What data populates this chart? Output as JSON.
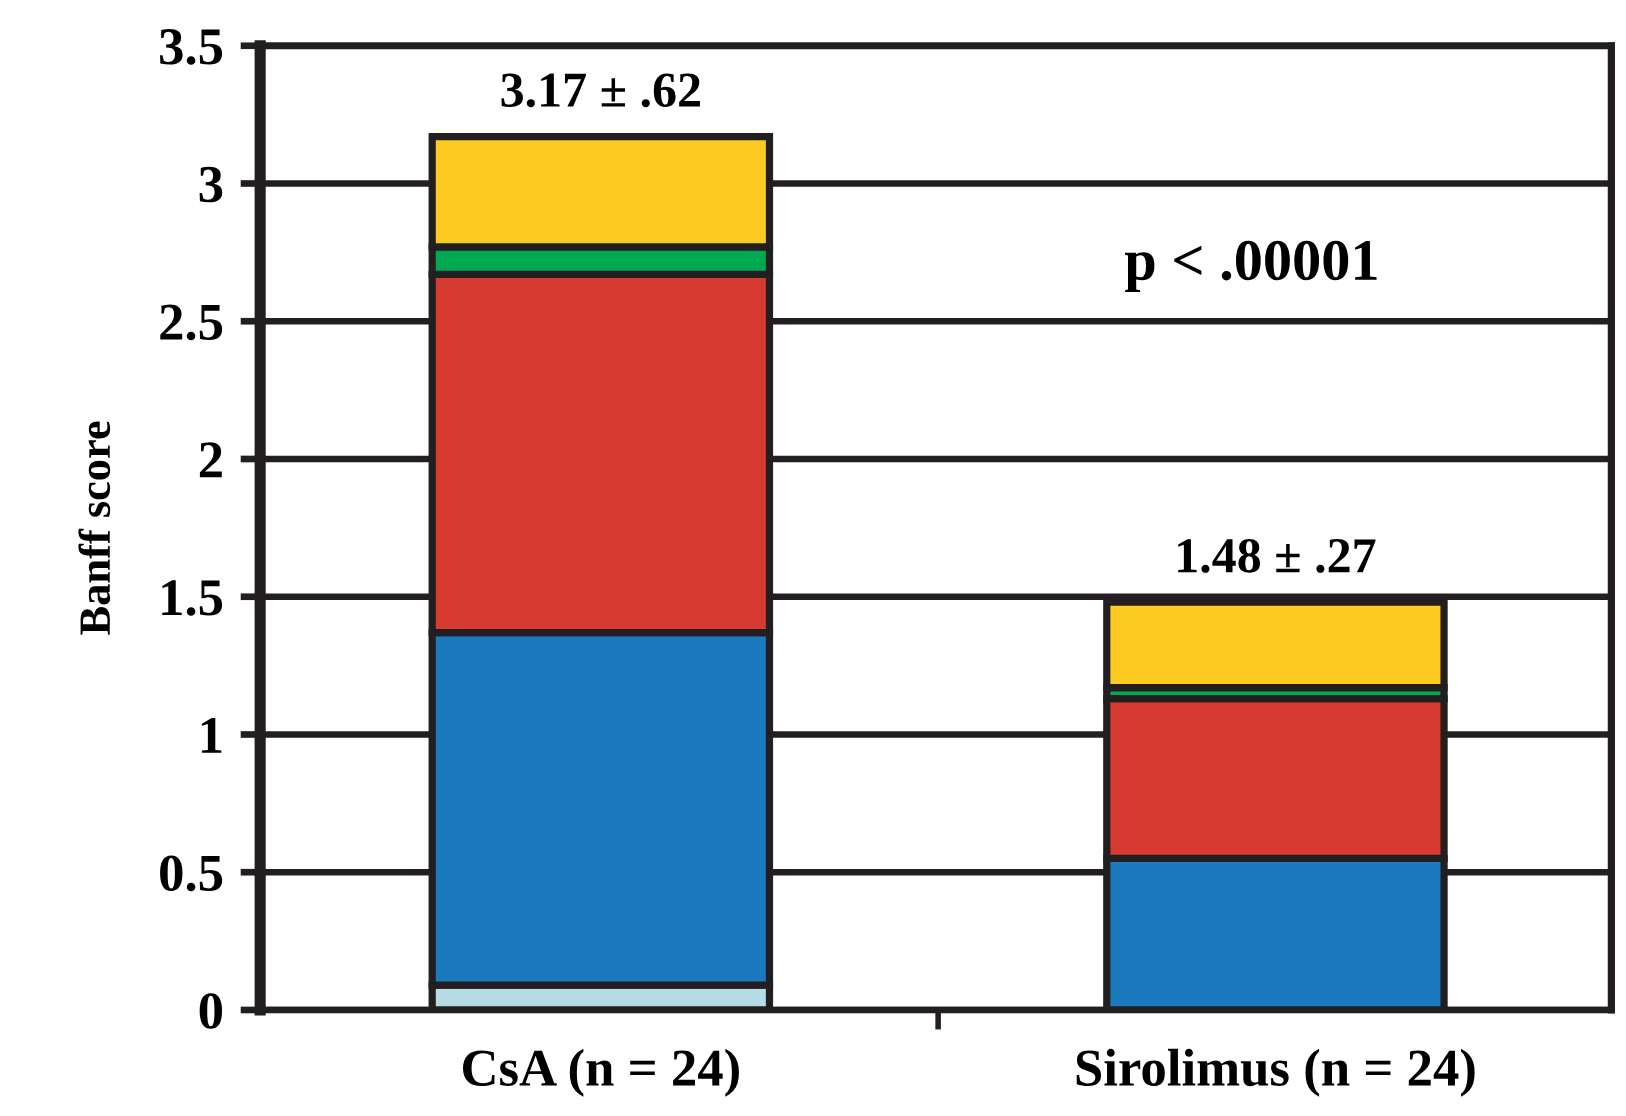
{
  "chart_data": {
    "type": "bar",
    "stacked": true,
    "ylabel": "Banff score",
    "categories": [
      "CsA (n = 24)",
      "Sirolimus (n = 24)"
    ],
    "series": [
      {
        "color": "#b6dce6",
        "values": [
          0.09,
          null
        ]
      },
      {
        "color": "#1a7abd",
        "values": [
          1.28,
          0.55
        ]
      },
      {
        "color": "#d63a30",
        "values": [
          1.3,
          0.58
        ]
      },
      {
        "color": "#00a94f",
        "values": [
          0.1,
          0.04
        ]
      },
      {
        "color": "#fccb22",
        "values": [
          0.4,
          0.31
        ]
      }
    ],
    "ylim": [
      0,
      3.5
    ],
    "yticks": [
      0,
      0.5,
      1,
      1.5,
      2,
      2.5,
      3,
      3.5
    ],
    "grid": "y",
    "annotations": [
      {
        "text": "3.17 ± .62",
        "x": "CsA (n = 24)",
        "y": 3.17
      },
      {
        "text": "1.48 ± .27",
        "x": "Sirolimus (n = 24)",
        "y": 1.48
      },
      "p < .00001"
    ]
  }
}
